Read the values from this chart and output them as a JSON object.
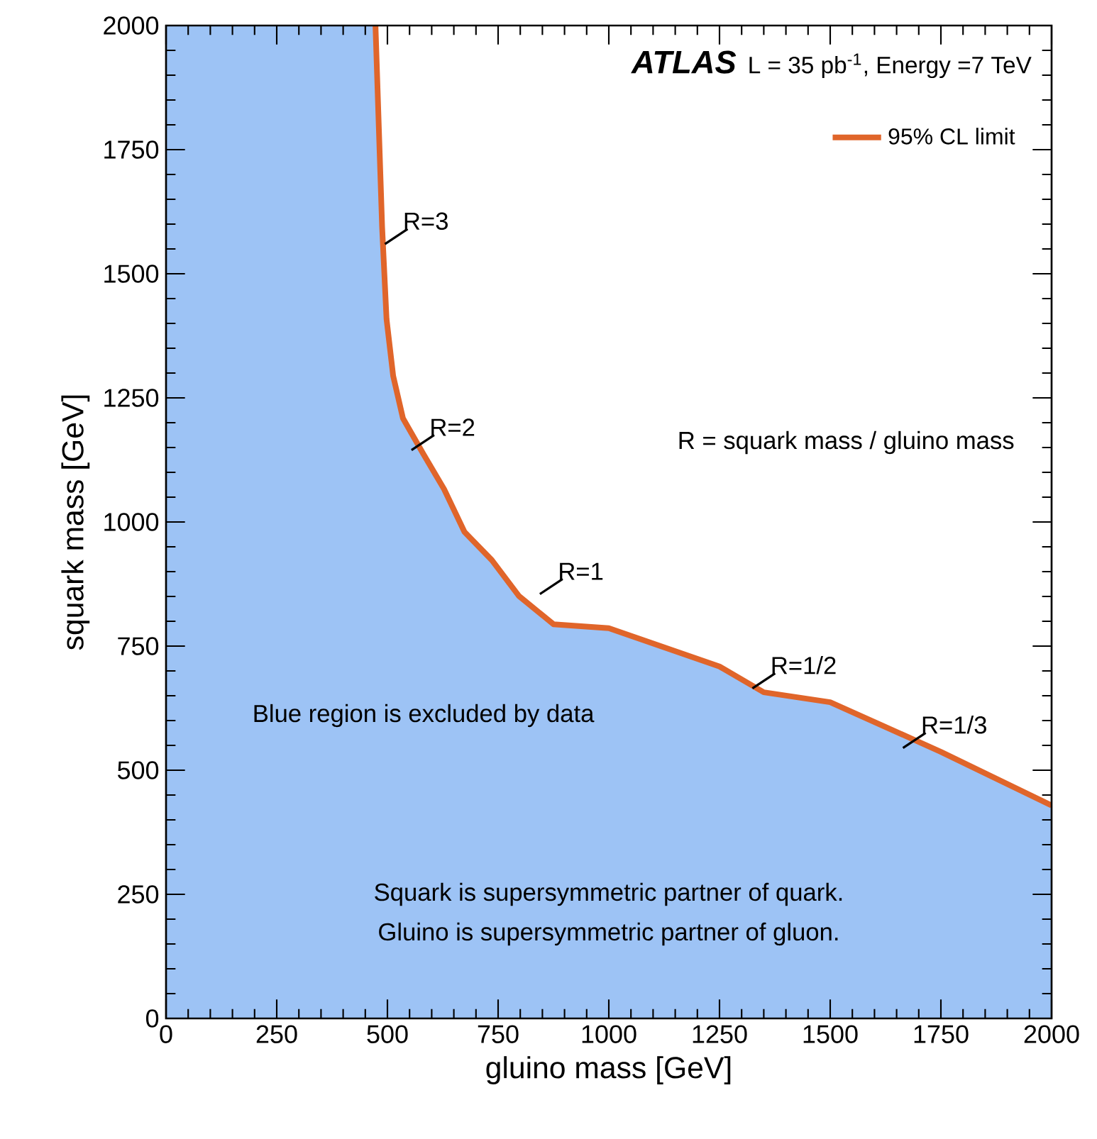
{
  "chart_data": {
    "type": "area",
    "title": "ATLAS",
    "subtitle": "L = 35 pb$^{-1}$,  Energy =7 TeV",
    "xlabel": "gluino mass [GeV]",
    "ylabel": "squark mass [GeV]",
    "series": [
      {
        "color": "#9dc3f5",
        "x": [
          0,
          473,
          488,
          498,
          513,
          535,
          581,
          628,
          674,
          736,
          797,
          875,
          1000,
          1250,
          1350,
          1500,
          1750,
          2000
        ],
        "values": [
          2000,
          2000,
          1594,
          1409,
          1294,
          1209,
          1137,
          1066,
          980,
          923,
          851,
          794,
          786,
          709,
          657,
          637,
          537,
          429
        ]
      },
      {
        "type": "line",
        "name": "95% CL limit",
        "color": "#e0652a",
        "x": [
          473,
          488,
          498,
          513,
          535,
          581,
          628,
          674,
          736,
          797,
          875,
          1000,
          1250,
          1350,
          1500,
          1750,
          2000
        ],
        "values": [
          2000,
          1594,
          1409,
          1294,
          1209,
          1137,
          1066,
          980,
          923,
          851,
          794,
          786,
          709,
          657,
          637,
          537,
          429
        ]
      }
    ],
    "annotations": [
      "Blue region is excluded by data",
      "R = squark mass / gluino mass",
      "Squark is supersymmetric partner of quark.",
      "Gluino is supersymmetric partner of gluon.",
      {
        "text": "R=3",
        "x": 520,
        "y": 1575
      },
      {
        "text": "R=2",
        "x": 580,
        "y": 1160
      },
      {
        "text": "R=1",
        "x": 870,
        "y": 870
      },
      {
        "text": "R=1/2",
        "x": 1350,
        "y": 680
      },
      {
        "text": "R=1/3",
        "x": 1690,
        "y": 560
      }
    ],
    "xlim": [
      0,
      2000
    ],
    "ylim": [
      0,
      2000
    ],
    "xticks": [
      0,
      250,
      500,
      750,
      1000,
      1250,
      1500,
      1750,
      2000
    ],
    "yticks": [
      0,
      250,
      500,
      750,
      1000,
      1250,
      1500,
      1750,
      2000
    ],
    "legend": "top right",
    "grid": false
  }
}
